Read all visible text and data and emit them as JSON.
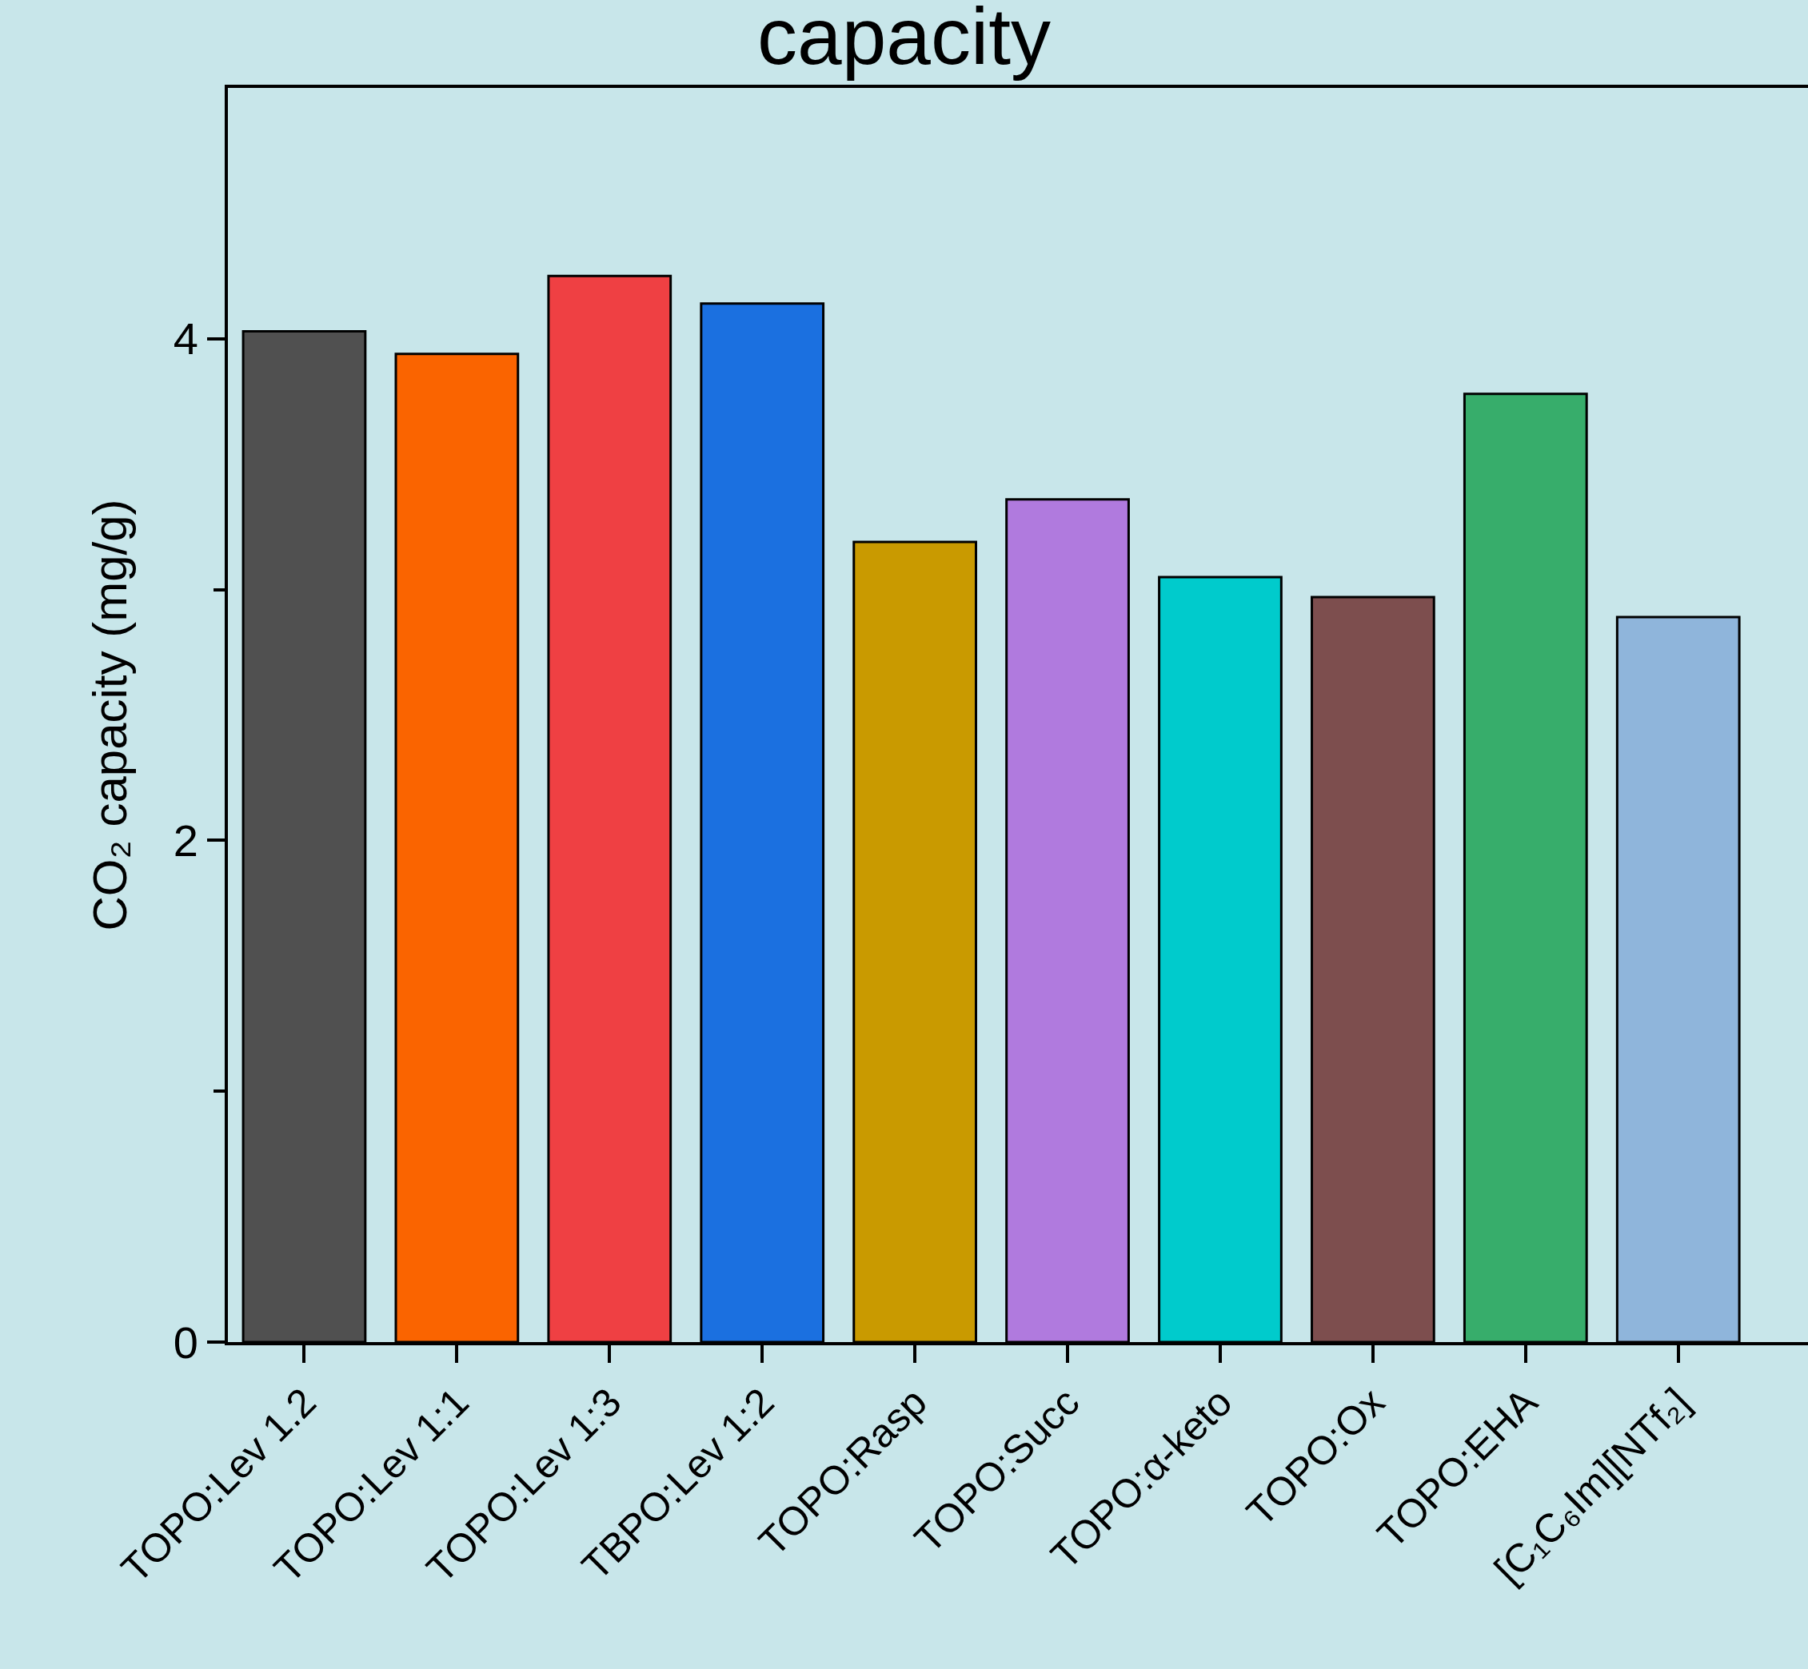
{
  "chart_data": {
    "type": "bar",
    "title": "capacity",
    "ylabel": "CO₂ capacity (mg/g)",
    "categories": [
      "TOPO:Lev 1.2",
      "TOPO:Lev 1:1",
      "TOPO:Lev 1:3",
      "TBPO:Lev 1:2",
      "TOPO:Rasp",
      "TOPO:Succ",
      "TOPO:α-keto",
      "TOPO:Ox",
      "TOPO:EHA",
      "[C₁C₆Im][NTf₂]"
    ],
    "values": [
      4.03,
      3.94,
      4.25,
      4.14,
      3.19,
      3.36,
      3.05,
      2.97,
      3.78,
      2.89
    ],
    "colors": [
      "#505050",
      "#fa6400",
      "#ef4043",
      "#1b70e0",
      "#c99a00",
      "#b07ade",
      "#00cbcc",
      "#7d4e4e",
      "#37ad6b",
      "#8fb5db"
    ],
    "ylim": [
      0,
      5
    ],
    "yticks": [
      0,
      {
        "value": 1,
        "label": null
      },
      2,
      {
        "value": 3,
        "label": null
      },
      4
    ]
  }
}
